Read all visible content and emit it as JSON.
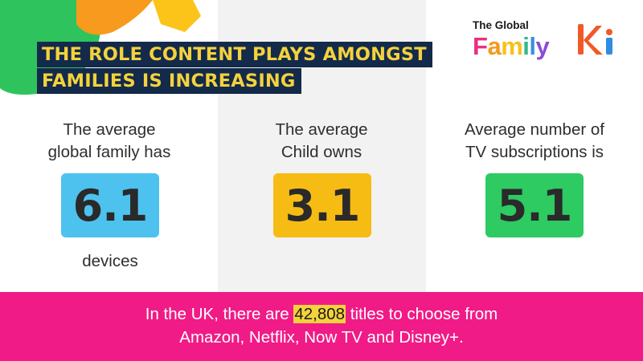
{
  "headline": {
    "line1": "THE ROLE CONTENT PLAYS AMONGST",
    "line2": "FAMILIES IS INCREASING"
  },
  "logo": {
    "small_text": "The Global",
    "big_letters": [
      "F",
      "a",
      "m",
      "i",
      "l",
      "y"
    ],
    "letter_colors": [
      "#e8307f",
      "#f39a1c",
      "#f4c21a",
      "#2fb98a",
      "#3a8fe0",
      "#8c4bd8"
    ],
    "ki_colors": {
      "k": "#f05a28",
      "i": "#2e8de0",
      "dot": "#f05a28"
    }
  },
  "stats": [
    {
      "label": "The average global family has",
      "label_lines": [
        "The average",
        "global family has"
      ],
      "value": "6.1",
      "sublabel": "devices",
      "color": "#4dc2ee"
    },
    {
      "label": "The average Child owns",
      "label_lines": [
        "The average",
        "Child owns"
      ],
      "value": "3.1",
      "color": "#f7bc14"
    },
    {
      "label": "Average number of TV subscriptions is",
      "label_lines": [
        "Average number of",
        "TV subscriptions is"
      ],
      "value": "5.1",
      "color": "#2dcb62"
    }
  ],
  "footer": {
    "pre": "In the UK, there are ",
    "highlight": "42,808",
    "post": " titles to choose from",
    "line2": "Amazon, Netflix, Now TV and Disney+.",
    "bg_color": "#f01b86",
    "highlight_color": "#f4d23d"
  },
  "decor": {
    "green": "#2fc35e",
    "orange": "#f79a1d",
    "yellow": "#fcc418",
    "headline_bg": "#132a4a",
    "headline_fg": "#f4d23d"
  }
}
